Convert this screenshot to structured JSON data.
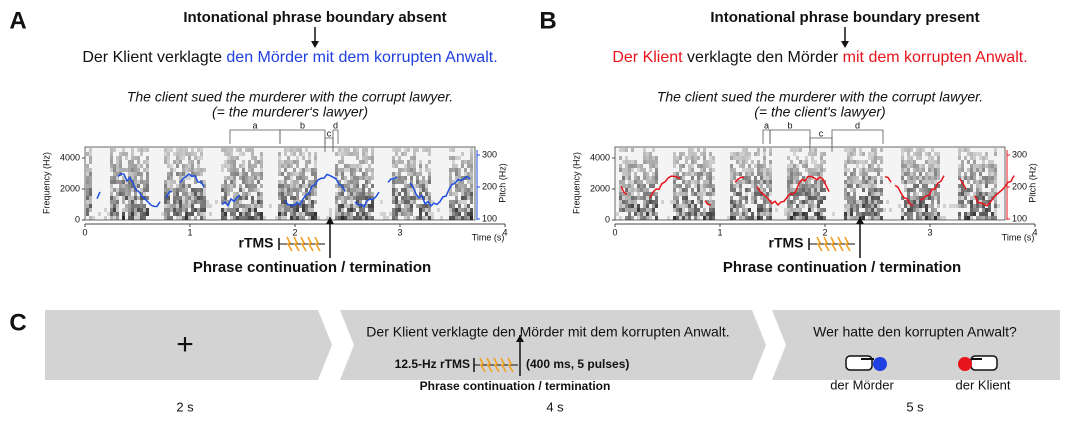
{
  "panels": [
    {
      "label": "A",
      "title": "Intonational phrase boundary absent",
      "sentence": [
        {
          "text": "Der Klient verklagte ",
          "color": "#111111"
        },
        {
          "text": "den Mörder mit dem korrupten Anwalt.",
          "color": "#1f3fe0"
        }
      ],
      "translation": "The client sued the murderer with the corrupt lawyer.",
      "gloss": "(= the murderer‘s lawyer)",
      "spectrogram": {
        "y_label": "Frequency (Hz)",
        "y_ticks": [
          "0",
          "2000",
          "4000"
        ],
        "y2_label": "Pitch (Hz)",
        "y2_ticks": [
          "100",
          "200",
          "300"
        ],
        "x_label": "Time (s)",
        "x_ticks": [
          "0",
          "1",
          "2",
          "3",
          "4"
        ],
        "segments": [
          "a",
          "b",
          "c",
          "d"
        ],
        "pitch_color": "#1f4fe0"
      },
      "rtms": "rTMS",
      "event": "Phrase continuation / termination"
    },
    {
      "label": "B",
      "title": "Intonational phrase boundary present",
      "sentence": [
        {
          "text": "Der Klient",
          "color": "#e8141b"
        },
        {
          "text": " verklagte den Mörder ",
          "color": "#111111"
        },
        {
          "text": "mit dem korrupten Anwalt.",
          "color": "#e8141b"
        }
      ],
      "translation": "The client sued the murderer with the corrupt lawyer.",
      "gloss": "(= the client's lawyer)",
      "spectrogram": {
        "y_label": "Frequency (Hz)",
        "y_ticks": [
          "0",
          "2000",
          "4000"
        ],
        "y2_label": "Pitch (Hz)",
        "y2_ticks": [
          "100",
          "200",
          "300"
        ],
        "x_label": "Time (s)",
        "x_ticks": [
          "0",
          "1",
          "2",
          "3",
          "4"
        ],
        "segments": [
          "a",
          "b",
          "c",
          "d"
        ],
        "pitch_color": "#e8141b"
      },
      "rtms": "rTMS",
      "event": "Phrase continuation / termination"
    }
  ],
  "trial": {
    "label": "C",
    "steps": [
      {
        "content": "+",
        "duration": "2 s"
      },
      {
        "sentence": "Der Klient verklagte den Mörder mit dem korrupten Anwalt.",
        "rtms": "12.5-Hz rTMS",
        "pulses": "(400 ms, 5 pulses)",
        "event": "Phrase continuation / termination",
        "duration": "4 s"
      },
      {
        "question": "Wer hatte den korrupten Anwalt?",
        "options": [
          {
            "text": "der Mörder",
            "color": "#1f3fe0"
          },
          {
            "text": "der Klient",
            "color": "#e8141b"
          }
        ],
        "duration": "5 s"
      }
    ]
  }
}
